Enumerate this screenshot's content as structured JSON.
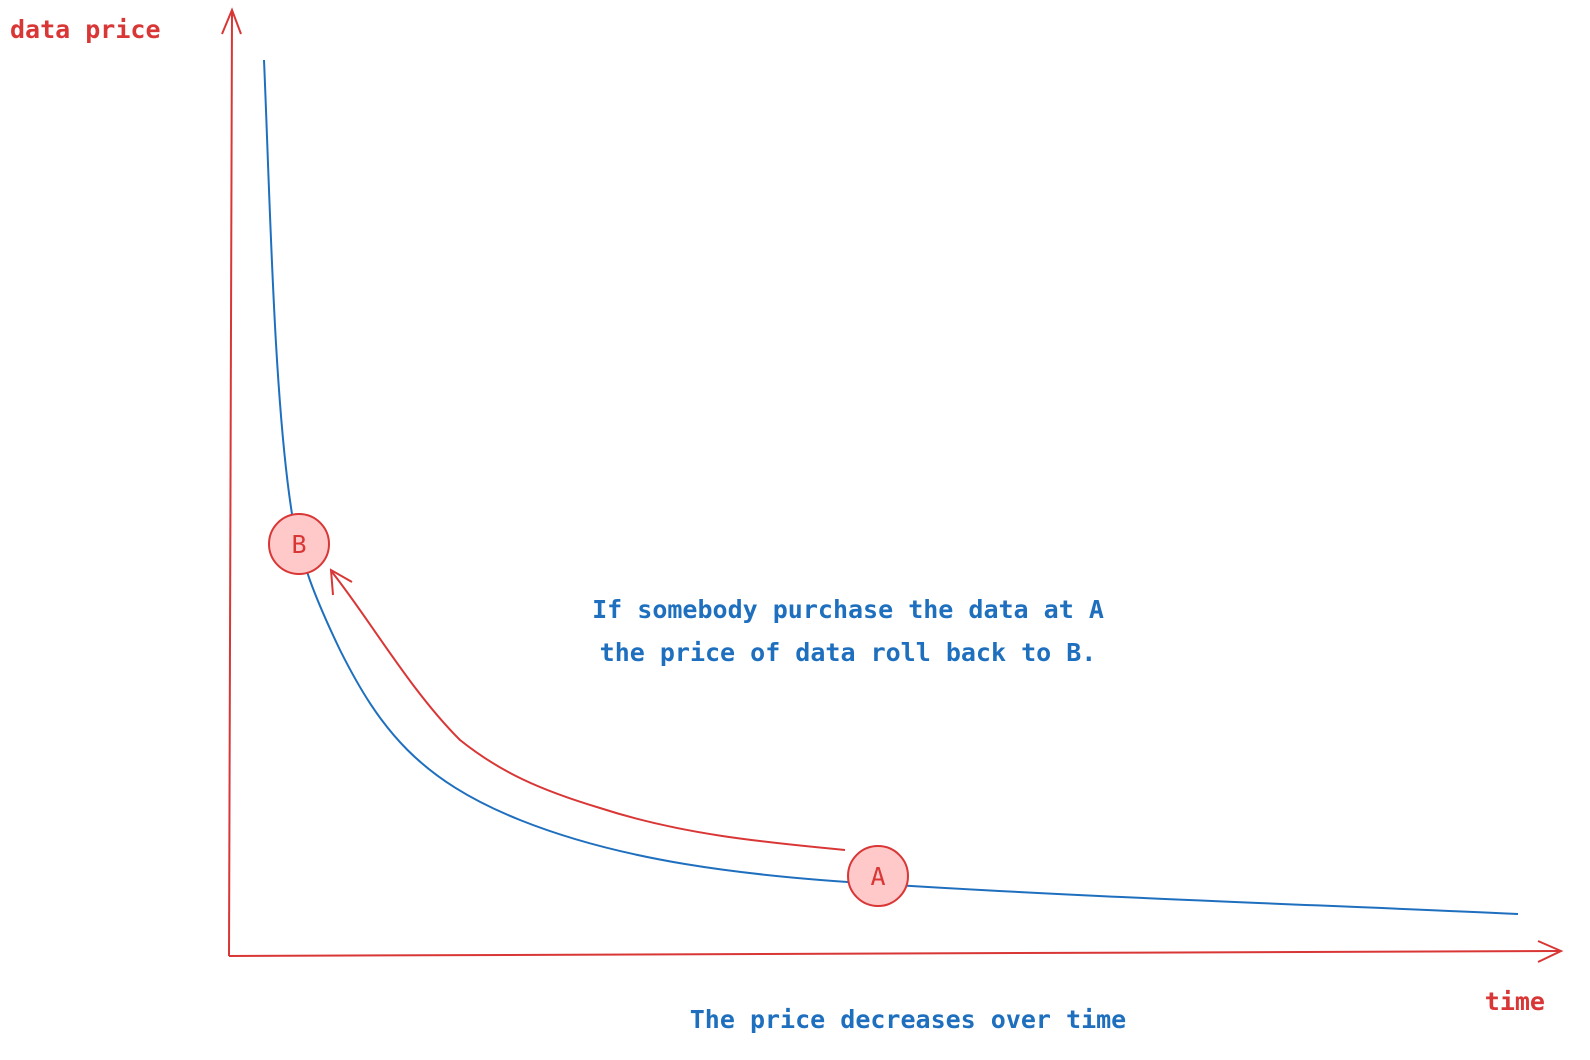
{
  "axes": {
    "y_label": "data price",
    "x_label": "time"
  },
  "points": {
    "a_label": "A",
    "b_label": "B"
  },
  "annotation": {
    "line1": "If somebody purchase the data at A",
    "line2": "the price of data roll back to B."
  },
  "caption": "The price decreases over time",
  "colors": {
    "axis": "#d93636",
    "curve": "#1f6fbf",
    "node_fill": "#ffc9c9",
    "node_stroke": "#d93636",
    "text_blue": "#1f6fbf",
    "text_red": "#d93636"
  }
}
